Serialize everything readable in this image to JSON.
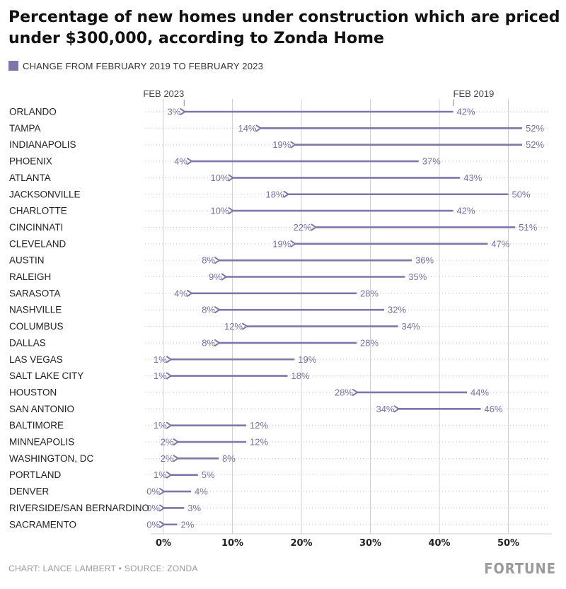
{
  "title": "Percentage of new homes under construction which are priced under $300,000, according to Zonda Home",
  "legend": {
    "label": "CHANGE FROM FEBRUARY 2019 TO FEBRUARY 2023",
    "color": "#8074ab"
  },
  "footer": {
    "credit": "CHART: LANCE LAMBERT • SOURCE: ZONDA",
    "logo": "FORTUNE"
  },
  "chart_data": {
    "type": "arrow",
    "title": "Percentage of new homes under construction which are priced under $300,000, according to Zonda Home",
    "start_label": "FEB 2019",
    "end_label": "FEB 2023",
    "xlim": [
      0,
      55
    ],
    "ticks": [
      0,
      10,
      20,
      30,
      40,
      50
    ],
    "tick_labels": [
      "0%",
      "10%",
      "20%",
      "30%",
      "40%",
      "50%"
    ],
    "grid": true,
    "colors": {
      "arrow": "#8074ab",
      "label": "#7a6fa3",
      "grid": "#d0d0d0",
      "dots": "#c9c9c9"
    },
    "rows": [
      {
        "city": "ORLANDO",
        "feb2019": 42,
        "feb2023": 3
      },
      {
        "city": "TAMPA",
        "feb2019": 52,
        "feb2023": 14
      },
      {
        "city": "INDIANAPOLIS",
        "feb2019": 52,
        "feb2023": 19
      },
      {
        "city": "PHOENIX",
        "feb2019": 37,
        "feb2023": 4
      },
      {
        "city": "ATLANTA",
        "feb2019": 43,
        "feb2023": 10
      },
      {
        "city": "JACKSONVILLE",
        "feb2019": 50,
        "feb2023": 18
      },
      {
        "city": "CHARLOTTE",
        "feb2019": 42,
        "feb2023": 10
      },
      {
        "city": "CINCINNATI",
        "feb2019": 51,
        "feb2023": 22
      },
      {
        "city": "CLEVELAND",
        "feb2019": 47,
        "feb2023": 19
      },
      {
        "city": "AUSTIN",
        "feb2019": 36,
        "feb2023": 8
      },
      {
        "city": "RALEIGH",
        "feb2019": 35,
        "feb2023": 9
      },
      {
        "city": "SARASOTA",
        "feb2019": 28,
        "feb2023": 4
      },
      {
        "city": "NASHVILLE",
        "feb2019": 32,
        "feb2023": 8
      },
      {
        "city": "COLUMBUS",
        "feb2019": 34,
        "feb2023": 12
      },
      {
        "city": "DALLAS",
        "feb2019": 28,
        "feb2023": 8
      },
      {
        "city": "LAS VEGAS",
        "feb2019": 19,
        "feb2023": 1
      },
      {
        "city": "SALT LAKE CITY",
        "feb2019": 18,
        "feb2023": 1
      },
      {
        "city": "HOUSTON",
        "feb2019": 44,
        "feb2023": 28
      },
      {
        "city": "SAN ANTONIO",
        "feb2019": 46,
        "feb2023": 34
      },
      {
        "city": "BALTIMORE",
        "feb2019": 12,
        "feb2023": 1
      },
      {
        "city": "MINNEAPOLIS",
        "feb2019": 12,
        "feb2023": 2
      },
      {
        "city": "WASHINGTON, DC",
        "feb2019": 8,
        "feb2023": 2
      },
      {
        "city": "PORTLAND",
        "feb2019": 5,
        "feb2023": 1
      },
      {
        "city": "DENVER",
        "feb2019": 4,
        "feb2023": 0
      },
      {
        "city": "RIVERSIDE/SAN BERNARDINO",
        "feb2019": 3,
        "feb2023": 0
      },
      {
        "city": "SACRAMENTO",
        "feb2019": 2,
        "feb2023": 0
      }
    ]
  }
}
